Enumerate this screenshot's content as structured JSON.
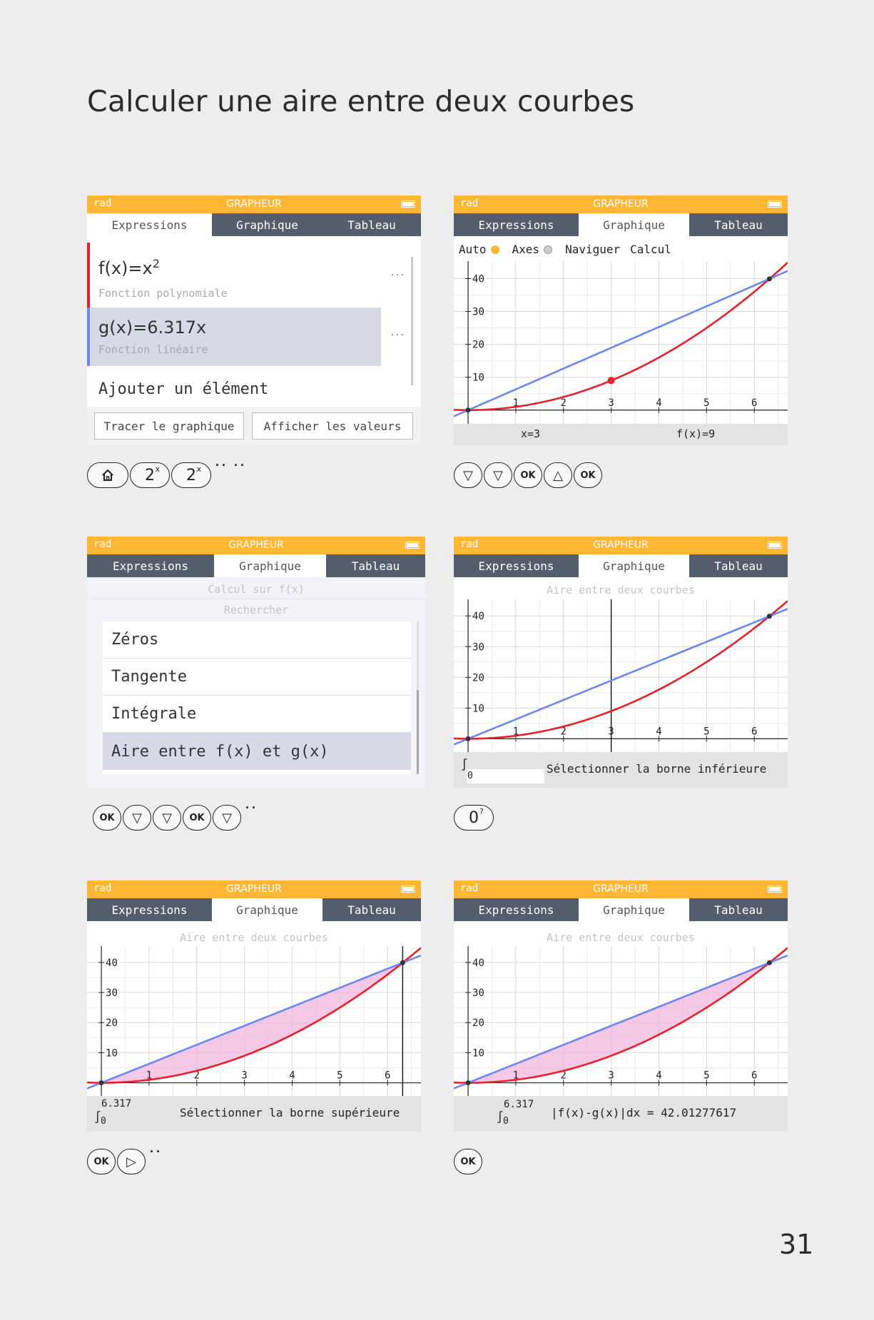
{
  "page": {
    "title": "Calculer une aire entre deux courbes",
    "number": "31"
  },
  "common": {
    "rad": "rad",
    "app": "GRAPHEUR",
    "tab1": "Expressions",
    "tab2": "Graphique",
    "tab3": "Tableau"
  },
  "s1": {
    "f_expr": "f(x)=x",
    "f_exp": "2",
    "f_type": "Fonction polynomiale",
    "g_expr": "g(x)=6.317x",
    "g_type": "Fonction linéaire",
    "add": "Ajouter un élément",
    "ellipsis": "···",
    "btn_plot": "Tracer le graphique",
    "btn_values": "Afficher les valeurs",
    "keys": [
      "2",
      "x",
      "2",
      "x"
    ],
    "dots": "·· ··"
  },
  "s2": {
    "auto": "Auto",
    "axes": "Axes",
    "navigate": "Naviguer",
    "calc": "Calcul",
    "x_readout": "x=3",
    "f_readout": "f(x)=9",
    "keys": [
      "▽",
      "▽",
      "OK",
      "△",
      "OK"
    ],
    "colors": {
      "auto_dot": "#ffb734",
      "axes_dot": "#bdbdbd"
    }
  },
  "s3": {
    "hdr1": "Calcul sur f(x)",
    "hdr2": "Rechercher",
    "items": [
      "Zéros",
      "Tangente",
      "Intégrale",
      "Aire entre f(x) et g(x)"
    ],
    "keys": [
      "OK",
      "▽",
      "▽",
      "OK",
      "▽"
    ],
    "dots": "··"
  },
  "s4": {
    "hdr": "Aire entre deux courbes",
    "int_sub": "0",
    "msg": "Sélectionner la borne inférieure",
    "key": "0",
    "key_sup": "?"
  },
  "s5": {
    "hdr": "Aire entre deux courbes",
    "int_sup": "6.317",
    "int_sub": "0",
    "msg": "Sélectionner la borne supérieure",
    "keys": [
      "OK",
      "▷"
    ],
    "dots": "··"
  },
  "s6": {
    "hdr": "Aire entre deux courbes",
    "int_sup": "6.317",
    "int_sub": "0",
    "result": "|f(x)-g(x)|dx = 42.01277617",
    "keys": [
      "OK"
    ]
  },
  "chart_data": [
    {
      "type": "line",
      "screen": "s2",
      "xlim": [
        -0.3,
        6.7
      ],
      "ylim": [
        -2,
        44
      ],
      "xticks": [
        "1",
        "2",
        "3",
        "4",
        "5",
        "6"
      ],
      "yticks": [
        "10",
        "20",
        "30",
        "40"
      ],
      "series": [
        {
          "function": "x^2",
          "color": "#e8202a"
        },
        {
          "function": "6.317x",
          "color": "#6d86f4"
        }
      ],
      "points": [
        {
          "x": 3,
          "y": 9
        },
        {
          "x": 6.317,
          "y": 39.9
        }
      ]
    },
    {
      "type": "line",
      "screen": "s4",
      "xlim": [
        -0.3,
        6.7
      ],
      "ylim": [
        -2,
        44
      ],
      "xticks": [
        "1",
        "2",
        "3",
        "4",
        "5",
        "6"
      ],
      "yticks": [
        "10",
        "20",
        "30",
        "40"
      ],
      "series": [
        {
          "function": "x^2",
          "color": "#e8202a"
        },
        {
          "function": "6.317x",
          "color": "#6d86f4"
        }
      ],
      "cursor_x": 3
    },
    {
      "type": "area",
      "screen": "s5",
      "xlim": [
        -0.3,
        6.7
      ],
      "ylim": [
        -2,
        44
      ],
      "xticks": [
        "1",
        "2",
        "3",
        "4",
        "5",
        "6"
      ],
      "yticks": [
        "10",
        "20",
        "30",
        "40"
      ],
      "series": [
        {
          "function": "x^2",
          "color": "#e8202a"
        },
        {
          "function": "6.317x",
          "color": "#6d86f4"
        }
      ],
      "shaded": [
        0,
        6.317
      ],
      "cursor_x": 6.317
    },
    {
      "type": "area",
      "screen": "s6",
      "xlim": [
        -0.3,
        6.7
      ],
      "ylim": [
        -2,
        44
      ],
      "xticks": [
        "1",
        "2",
        "3",
        "4",
        "5",
        "6"
      ],
      "yticks": [
        "10",
        "20",
        "30",
        "40"
      ],
      "series": [
        {
          "function": "x^2",
          "color": "#e8202a"
        },
        {
          "function": "6.317x",
          "color": "#6d86f4"
        }
      ],
      "shaded": [
        0,
        6.317
      ],
      "area": 42.01277617
    }
  ]
}
